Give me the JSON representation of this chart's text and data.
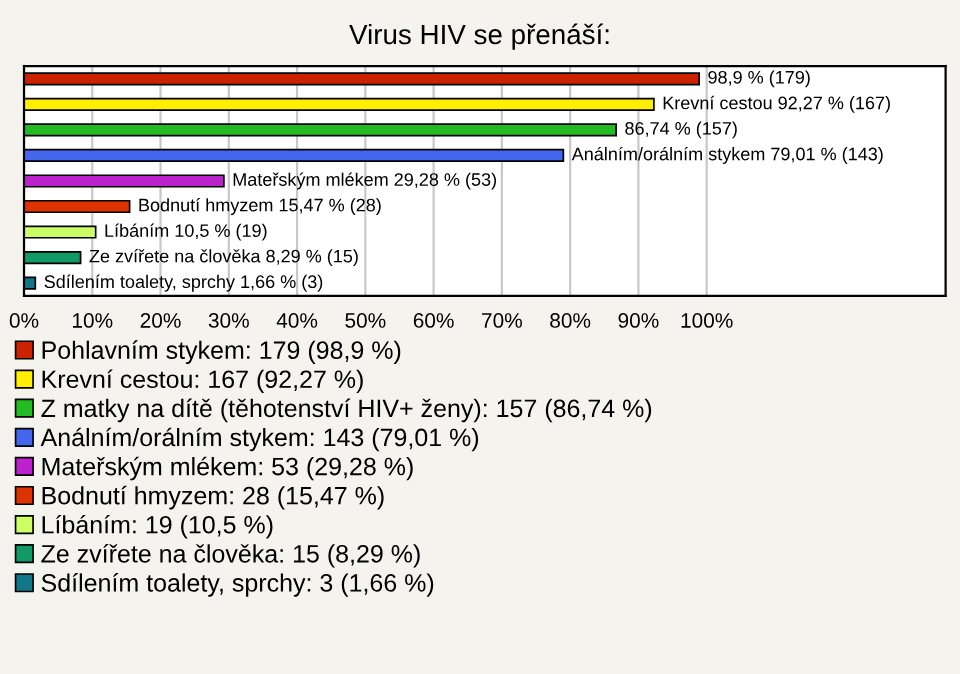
{
  "chart_data": {
    "type": "bar",
    "orientation": "horizontal",
    "title": "Virus HIV se přenáší:",
    "categories": [
      null,
      null,
      null,
      null,
      null,
      null,
      null,
      null,
      null
    ],
    "series": [
      {
        "name": "Pohlavním stykem: 179 (98,9 %)",
        "color": "#cc2200",
        "values": [
          98.9,
          null,
          null,
          null,
          null,
          null,
          null,
          null,
          null
        ],
        "value_labels": [
          "98,9 % (179)",
          null,
          null,
          null,
          null,
          null,
          null,
          null,
          null
        ]
      },
      {
        "name": "Krevní cestou: 167 (92,27 %)",
        "color": "#ffee00",
        "values": [
          null,
          92.27,
          null,
          null,
          null,
          null,
          null,
          null,
          null
        ],
        "value_labels": [
          null,
          "Krevní cestou 92,27 % (167)",
          null,
          null,
          null,
          null,
          null,
          null,
          null
        ]
      },
      {
        "name": "Z matky na dítě (těhotenství HIV+ ženy): 157 (86,74 %)",
        "color": "#22bb22",
        "values": [
          null,
          null,
          86.74,
          null,
          null,
          null,
          null,
          null,
          null
        ],
        "value_labels": [
          null,
          null,
          "86,74 % (157)",
          null,
          null,
          null,
          null,
          null,
          null
        ]
      },
      {
        "name": "Análním/orálním stykem: 143 (79,01 %)",
        "color": "#4466ee",
        "values": [
          null,
          null,
          null,
          79.01,
          null,
          null,
          null,
          null,
          null
        ],
        "value_labels": [
          null,
          null,
          null,
          "Análním/orálním stykem 79,01 % (143)",
          null,
          null,
          null,
          null,
          null
        ]
      },
      {
        "name": "Mateřským mlékem: 53 (29,28 %)",
        "color": "#bb22cc",
        "values": [
          null,
          null,
          null,
          null,
          29.28,
          null,
          null,
          null,
          null
        ],
        "value_labels": [
          null,
          null,
          null,
          null,
          "Mateřským mlékem 29,28 % (53)",
          null,
          null,
          null,
          null
        ]
      },
      {
        "name": "Bodnutí hmyzem: 28 (15,47 %)",
        "color": "#dd3300",
        "values": [
          null,
          null,
          null,
          null,
          null,
          15.47,
          null,
          null,
          null
        ],
        "value_labels": [
          null,
          null,
          null,
          null,
          null,
          "Bodnutí hmyzem 15,47 % (28)",
          null,
          null,
          null
        ]
      },
      {
        "name": "Líbáním: 19 (10,5 %)",
        "color": "#ccff66",
        "values": [
          null,
          null,
          null,
          null,
          null,
          null,
          10.5,
          null,
          null
        ],
        "value_labels": [
          null,
          null,
          null,
          null,
          null,
          null,
          "Líbáním 10,5 % (19)",
          null,
          null
        ]
      },
      {
        "name": "Ze zvířete na člověka: 15 (8,29 %)",
        "color": "#119966",
        "values": [
          null,
          null,
          null,
          null,
          null,
          null,
          null,
          8.29,
          null
        ],
        "value_labels": [
          null,
          null,
          null,
          null,
          null,
          null,
          null,
          "Ze zvířete na člověka 8,29 % (15)",
          null
        ]
      },
      {
        "name": "Sdílením toalety, sprchy: 3 (1,66 %)",
        "color": "#117788",
        "values": [
          null,
          null,
          null,
          null,
          null,
          null,
          null,
          null,
          1.66
        ],
        "value_labels": [
          null,
          null,
          null,
          null,
          null,
          null,
          null,
          null,
          "Sdílením toalety, sprchy 1,66 % (3)"
        ]
      }
    ],
    "xlim": [
      0,
      135
    ],
    "xticks": [
      {
        "value": 0,
        "label": "0%"
      },
      {
        "value": 10,
        "label": "10%"
      },
      {
        "value": 20,
        "label": "20%"
      },
      {
        "value": 30,
        "label": "30%"
      },
      {
        "value": 40,
        "label": "40%"
      },
      {
        "value": 50,
        "label": "50%"
      },
      {
        "value": 60,
        "label": "60%"
      },
      {
        "value": 70,
        "label": "70%"
      },
      {
        "value": 80,
        "label": "80%"
      },
      {
        "value": 90,
        "label": "90%"
      },
      {
        "value": 100,
        "label": "100%"
      }
    ],
    "grid": "x",
    "legend": "bottom"
  }
}
